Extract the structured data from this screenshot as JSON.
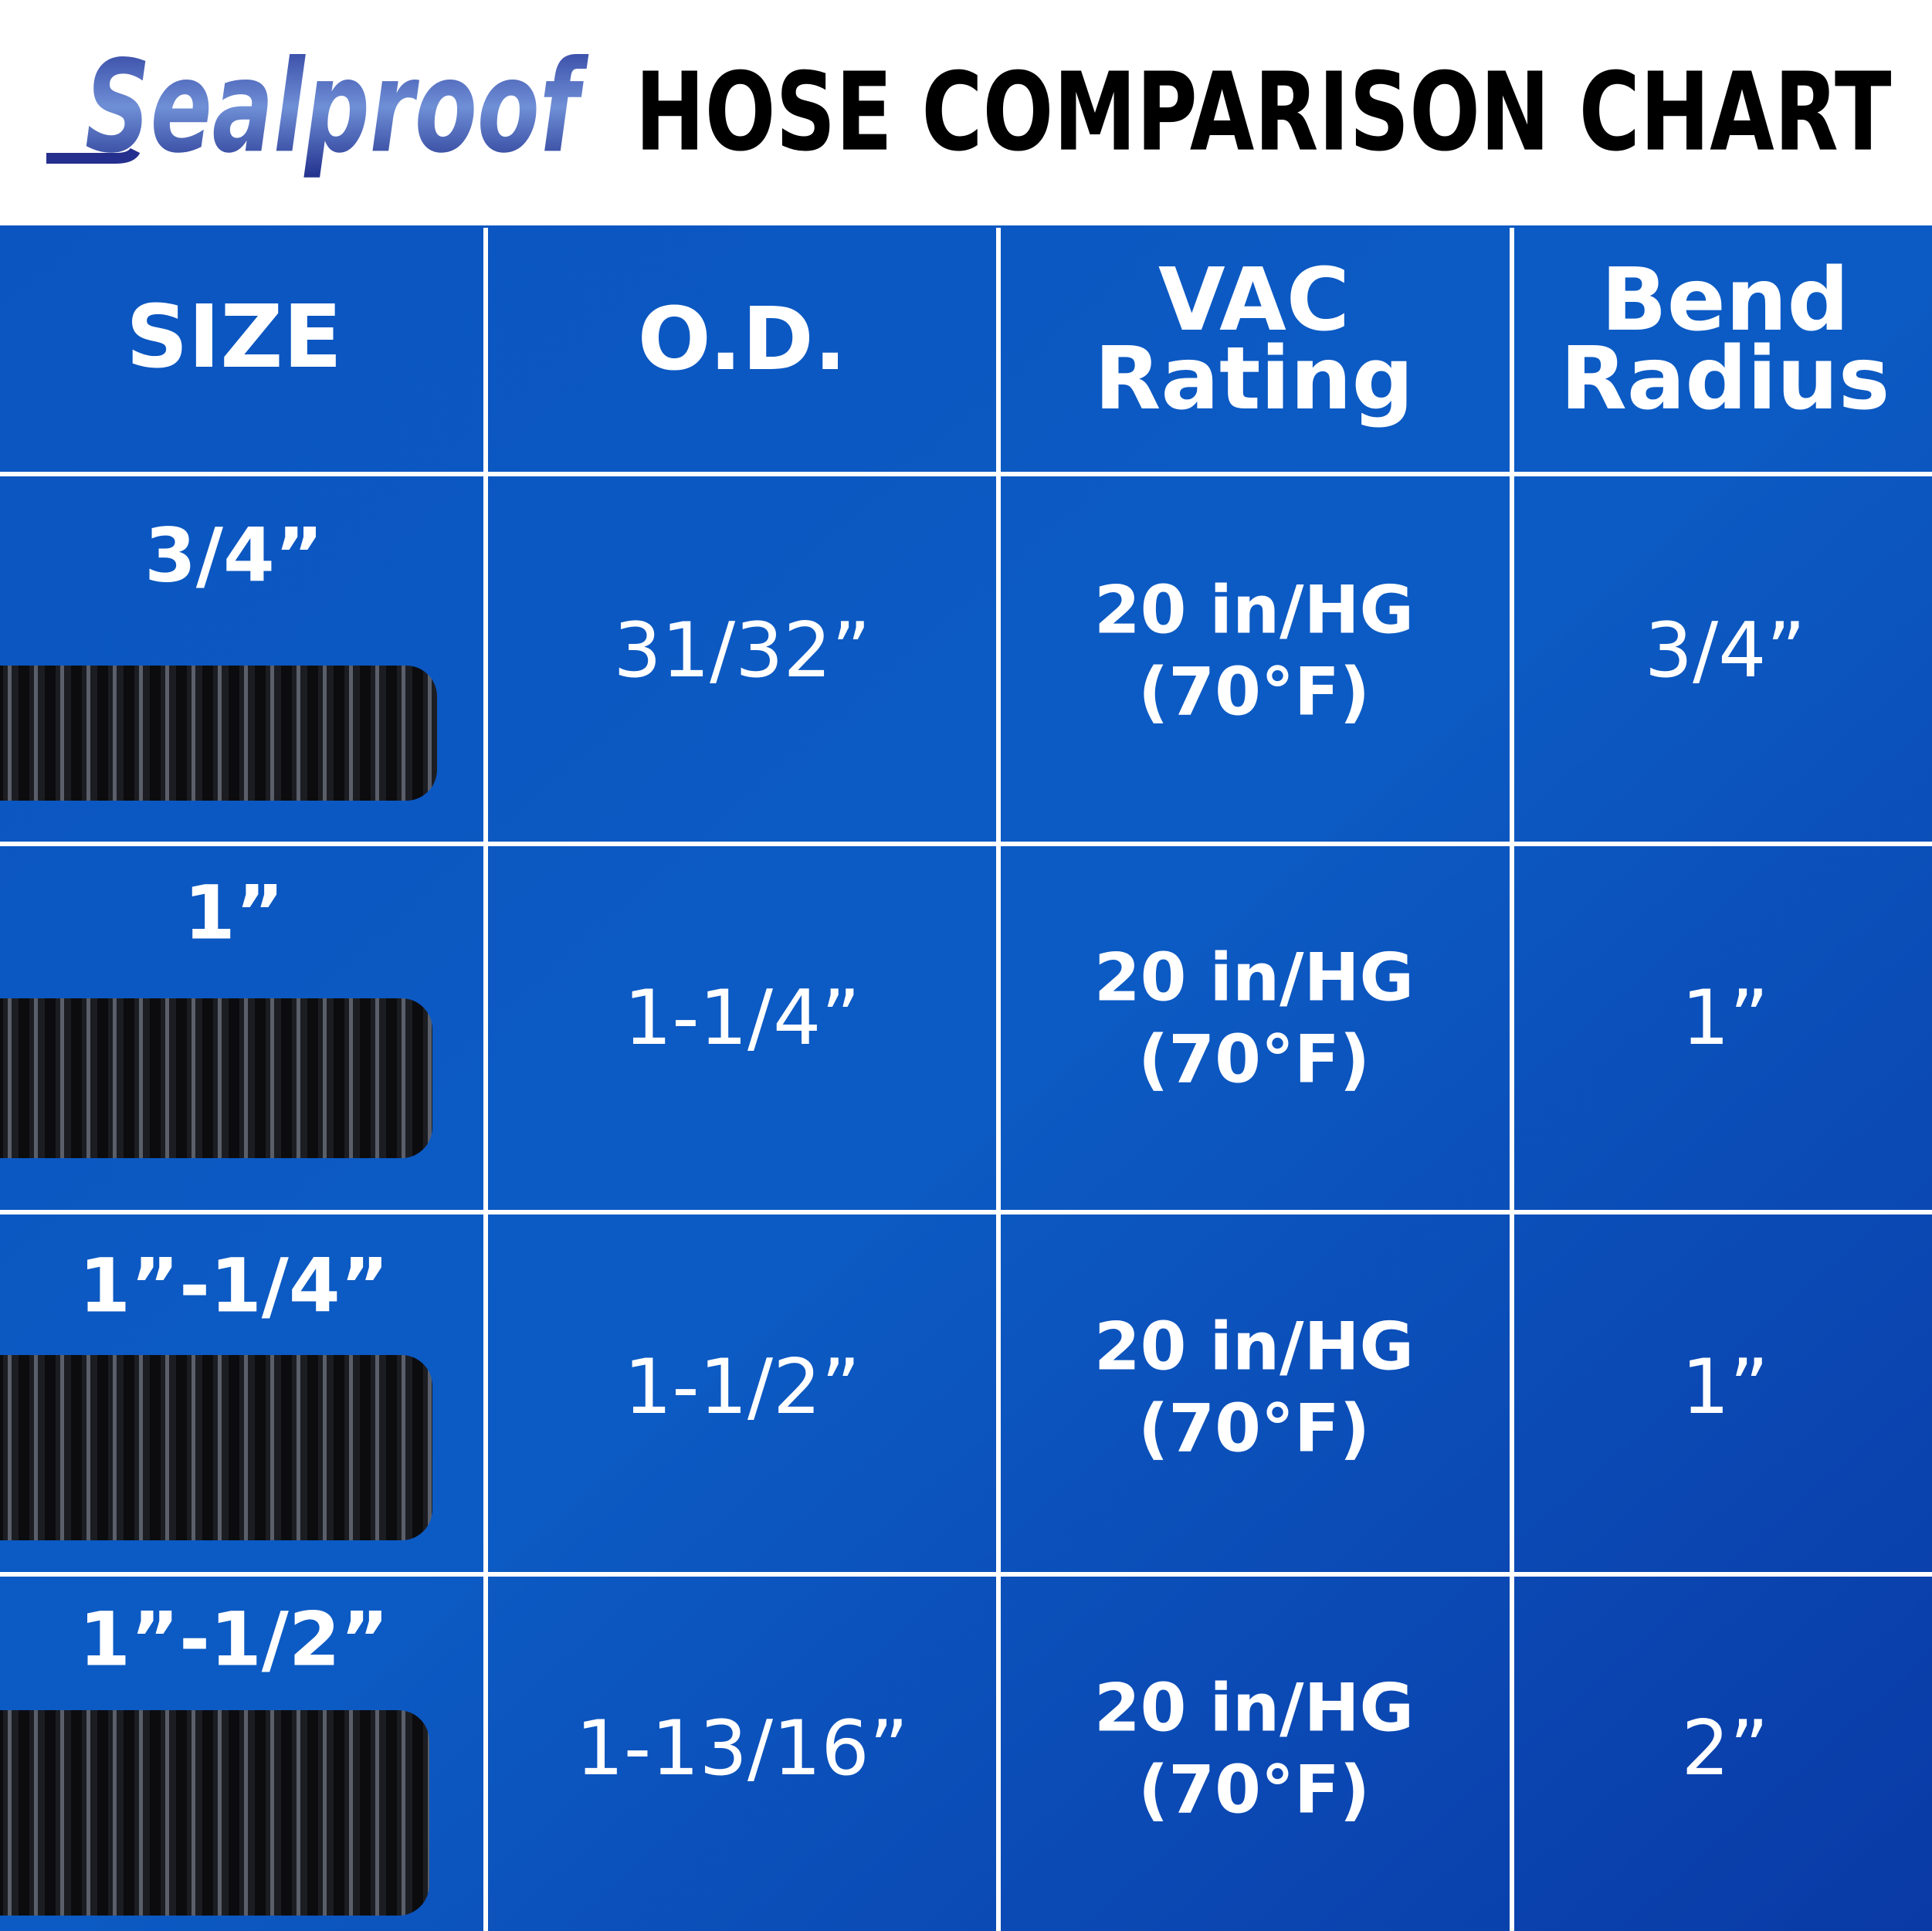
{
  "header": {
    "brand": "Sealproof",
    "title": "HOSE COMPARISON CHART"
  },
  "table": {
    "columns": [
      [
        "SIZE"
      ],
      [
        "O.D."
      ],
      [
        "VAC",
        "Rating"
      ],
      [
        "Bend",
        "Radius"
      ]
    ],
    "rows": [
      {
        "size": "3/4”",
        "od": "31/32”",
        "vac": [
          "20 in/HG",
          "(70°F)"
        ],
        "bend": "3/4”"
      },
      {
        "size": "1”",
        "od": "1-1/4”",
        "vac": [
          "20 in/HG",
          "(70°F)"
        ],
        "bend": "1”"
      },
      {
        "size": "1”-1/4”",
        "od": "1-1/2”",
        "vac": [
          "20 in/HG",
          "(70°F)"
        ],
        "bend": "1”"
      },
      {
        "size": "1”-1/2”",
        "od": "1-13/16”",
        "vac": [
          "20 in/HG",
          "(70°F)"
        ],
        "bend": "2”"
      }
    ]
  }
}
